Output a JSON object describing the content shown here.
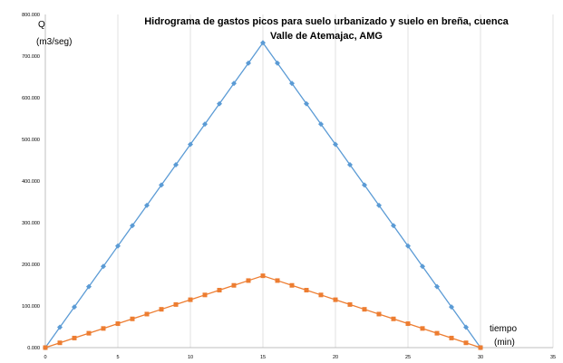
{
  "chart_data": {
    "type": "line",
    "title_line1": "Hidrograma de gastos picos para  suelo urbanizado y suelo en breña, cuenca",
    "title_line2": "Valle de Atemajac, AMG",
    "ylabel_line1": "Q",
    "ylabel_line2": "(m3/seg)",
    "xlabel_line1": "tiempo",
    "xlabel_line2": "(min)",
    "xlim": [
      0,
      35
    ],
    "ylim": [
      0,
      800
    ],
    "x_ticks": [
      "0",
      "5",
      "10",
      "15",
      "20",
      "25",
      "30",
      "35"
    ],
    "y_ticks": [
      "0.000",
      "100.000",
      "200.000",
      "300.000",
      "400.000",
      "500.000",
      "600.000",
      "700.000",
      "800.000"
    ],
    "grid": "vertical",
    "x": [
      0,
      1,
      2,
      3,
      4,
      5,
      6,
      7,
      8,
      9,
      10,
      11,
      12,
      13,
      14,
      15,
      16,
      17,
      18,
      19,
      20,
      21,
      22,
      23,
      24,
      25,
      26,
      27,
      28,
      29,
      30
    ],
    "series": [
      {
        "color": "#5b9bd5",
        "marker": "diamond",
        "values": [
          0,
          48.8,
          97.6,
          146.4,
          195.2,
          244,
          292.8,
          341.6,
          390.4,
          439.2,
          488,
          536.8,
          585.6,
          634.4,
          683.2,
          732,
          683.2,
          634.4,
          585.6,
          536.8,
          488,
          439.2,
          390.4,
          341.6,
          292.8,
          244,
          195.2,
          146.4,
          97.6,
          48.8,
          0
        ]
      },
      {
        "color": "#ed7d31",
        "marker": "square",
        "values": [
          0,
          11.5,
          23,
          34.5,
          46,
          57.5,
          69,
          80.5,
          92,
          103.5,
          115,
          126.5,
          138,
          149.5,
          161,
          172.5,
          161,
          149.5,
          138,
          126.5,
          115,
          103.5,
          92,
          80.5,
          69,
          57.5,
          46,
          34.5,
          23,
          11.5,
          0
        ]
      }
    ]
  }
}
